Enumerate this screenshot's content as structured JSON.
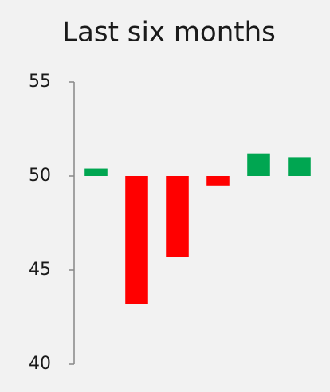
{
  "chart_data": {
    "type": "bar",
    "title": "Last six months",
    "categories": [
      null,
      null,
      null,
      null,
      null,
      null
    ],
    "values": [
      50.4,
      43.2,
      45.7,
      49.5,
      51.2,
      51.0
    ],
    "base": 50,
    "up_color": "#00a651",
    "down_color": "#ff0000",
    "ylim": [
      40,
      55
    ],
    "yticks": [
      40,
      45,
      50,
      55
    ],
    "grid": false
  }
}
